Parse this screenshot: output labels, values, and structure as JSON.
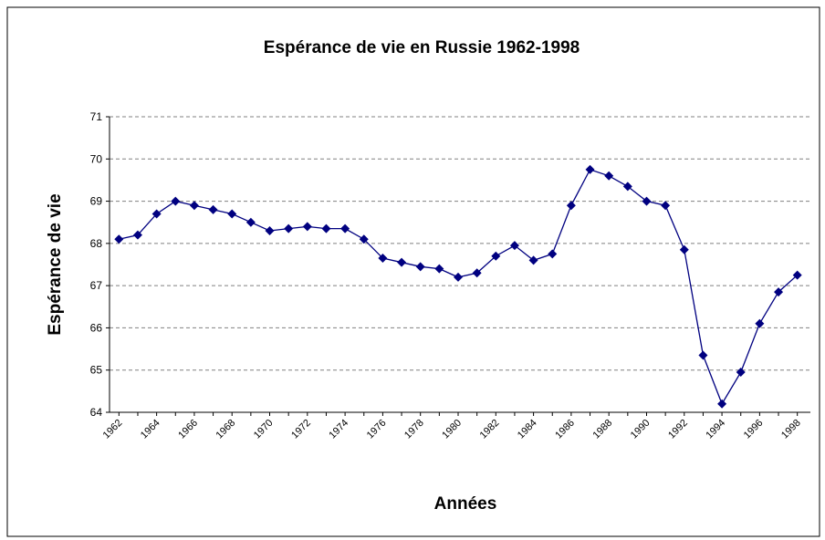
{
  "chart_data": {
    "type": "line",
    "title": "Espérance de vie en Russie 1962-1998",
    "x_label": "Années",
    "y_label": "Espérance de vie",
    "categories": [
      "1962",
      null,
      "1964",
      null,
      "1966",
      null,
      "1968",
      null,
      "1970",
      null,
      "1972",
      null,
      "1974",
      null,
      "1976",
      null,
      "1978",
      null,
      "1980",
      null,
      "1982",
      null,
      "1984",
      null,
      "1986",
      null,
      "1988",
      null,
      "1990",
      null,
      "1992",
      null,
      "1994",
      null,
      "1996",
      null,
      "1998"
    ],
    "series": [
      {
        "name": "Espérance de vie",
        "color": "#000080",
        "values": [
          68.1,
          68.2,
          68.7,
          69.0,
          68.9,
          68.8,
          68.7,
          68.5,
          68.3,
          68.35,
          68.4,
          68.35,
          68.35,
          68.1,
          67.65,
          67.55,
          67.45,
          67.4,
          67.2,
          67.3,
          67.7,
          67.95,
          67.6,
          67.75,
          68.9,
          69.75,
          69.6,
          69.35,
          69.0,
          68.9,
          67.85,
          65.35,
          64.2,
          64.95,
          66.1,
          66.85,
          67.25
        ]
      }
    ],
    "ylim": [
      64,
      71
    ],
    "yticks": [
      64,
      65,
      66,
      67,
      68,
      69,
      70,
      71
    ],
    "grid": true
  }
}
